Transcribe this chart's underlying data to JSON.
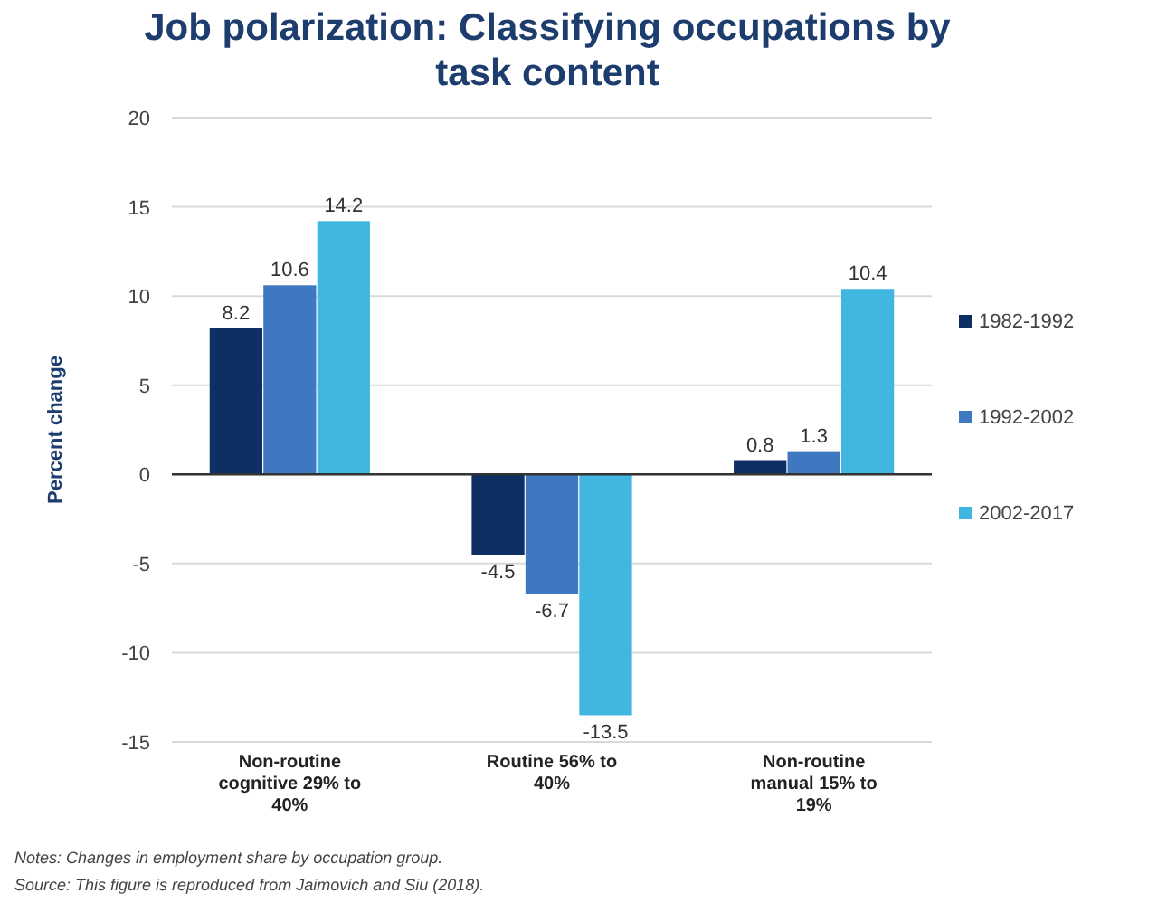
{
  "chart_data": {
    "type": "bar",
    "title": "Job polarization: Classifying occupations by task content",
    "ylabel": "Percent change",
    "categories": [
      "Non-routine cognitive 29% to 40%",
      "Routine 56% to 40%",
      "Non-routine manual 15% to 19%"
    ],
    "series": [
      {
        "name": "1982-1992",
        "color": "#0d2f63",
        "values": [
          8.2,
          -4.5,
          0.8
        ]
      },
      {
        "name": "1992-2002",
        "color": "#3f78c0",
        "values": [
          10.6,
          -6.7,
          1.3
        ]
      },
      {
        "name": "2002-2017",
        "color": "#41b6e0",
        "values": [
          14.2,
          -13.5,
          10.4
        ]
      }
    ],
    "ylim": [
      -15,
      20
    ],
    "yticks": [
      -15,
      -10,
      -5,
      0,
      5,
      10,
      15,
      20
    ],
    "grid": "y",
    "legend": "right",
    "data_labels": true,
    "annotations": [
      "Notes: Changes in employment share by occupation group.",
      "Source: This figure is reproduced from Jaimovich and Siu (2018)."
    ]
  }
}
